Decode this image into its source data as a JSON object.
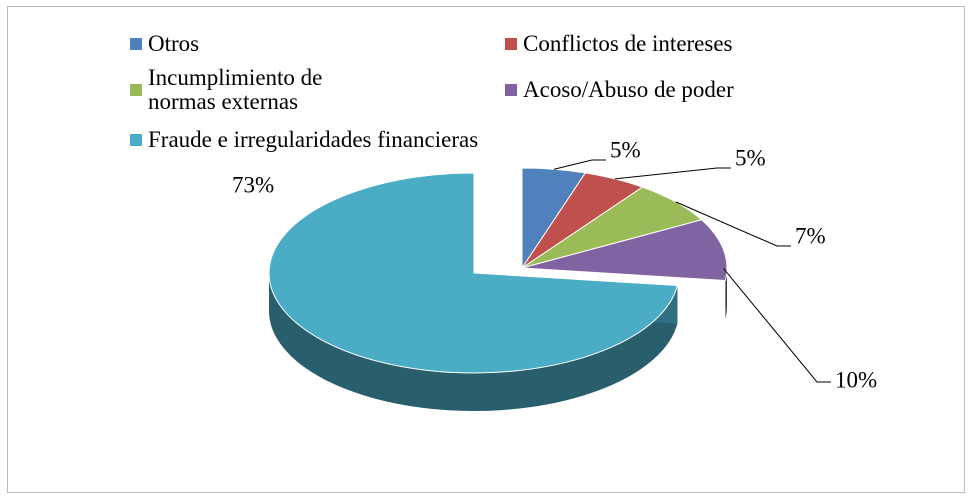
{
  "chart_data": {
    "type": "pie",
    "categories": [
      "Otros",
      "Conflictos de intereses",
      "Incumplimiento de normas externas",
      "Acoso/Abuso de poder",
      "Fraude e irregularidades financieras"
    ],
    "values": [
      5,
      5,
      7,
      10,
      73
    ],
    "value_labels": [
      "5%",
      "5%",
      "7%",
      "10%",
      "73%"
    ],
    "colors": [
      "#4f81bd",
      "#c0504d",
      "#9bbb59",
      "#8064a2",
      "#4bacc6"
    ],
    "legend": "top"
  }
}
